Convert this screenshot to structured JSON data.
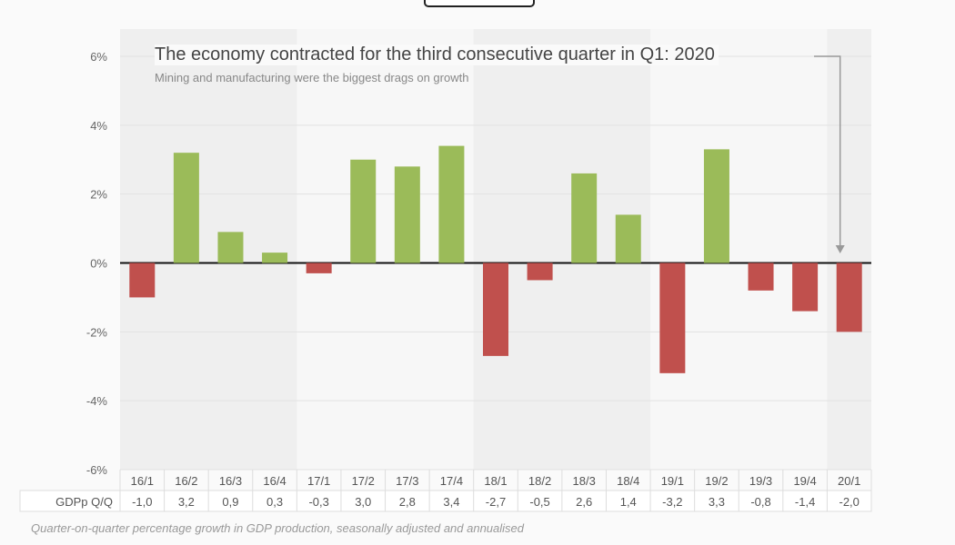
{
  "chart_data": {
    "type": "bar",
    "title": "The economy contracted for the third consecutive quarter in Q1: 2020",
    "subtitle": "Mining and manufacturing were the biggest drags on growth",
    "categories": [
      "16/1",
      "16/2",
      "16/3",
      "16/4",
      "17/1",
      "17/2",
      "17/3",
      "17/4",
      "18/1",
      "18/2",
      "18/3",
      "18/4",
      "19/1",
      "19/2",
      "19/3",
      "19/4",
      "20/1"
    ],
    "values": [
      -1.0,
      3.2,
      0.9,
      0.3,
      -0.3,
      3.0,
      2.8,
      3.4,
      -2.7,
      -0.5,
      2.6,
      1.4,
      -3.2,
      3.3,
      -0.8,
      -1.4,
      -2.0
    ],
    "value_labels": [
      "-1,0",
      "3,2",
      "0,9",
      "0,3",
      "-0,3",
      "3,0",
      "2,8",
      "3,4",
      "-2,7",
      "-0,5",
      "2,6",
      "1,4",
      "-3,2",
      "3,3",
      "-0,8",
      "-1,4",
      "-2,0"
    ],
    "table_row_label": "GDPp Q/Q",
    "yticks": [
      6,
      4,
      2,
      0,
      -2,
      -4,
      -6
    ],
    "ytick_labels": [
      "6%",
      "4%",
      "2%",
      "0%",
      "-2%",
      "-4%",
      "-6%"
    ],
    "ylim": [
      -6,
      6
    ],
    "grid": true,
    "colors": {
      "positive": "#9bbb59",
      "negative": "#c0504d",
      "band": "#efefef"
    },
    "footnote": "Quarter-on-quarter percentage growth in GDP production, seasonally adjusted and annualised"
  }
}
